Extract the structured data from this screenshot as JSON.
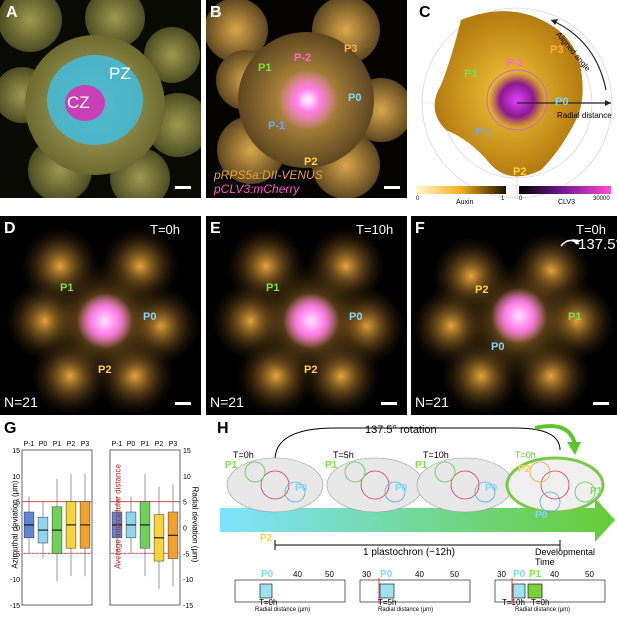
{
  "panelA": {
    "letter": "A",
    "cz": "CZ",
    "pz": "PZ"
  },
  "panelB": {
    "letter": "B",
    "p_minus2": "P-2",
    "p3": "P3",
    "p1": "P1",
    "p0": "P0",
    "p_minus1": "P-1",
    "p2": "P2",
    "legend1": "pRPS5a:DII-VENUS",
    "legend2": "pCLV3:mCherry"
  },
  "panelC": {
    "letter": "C",
    "aligned_angle": "Aligned angle",
    "radial_distance": "Radial distance",
    "p3": "P3",
    "p_minus2": "P-2",
    "p1": "P1",
    "p0": "P0",
    "p_minus1": "P-1",
    "p2": "P2",
    "auxin_cb_min": "0",
    "auxin_cb_max": "1",
    "auxin_label": "Auxin",
    "clv3_cb_min": "0",
    "clv3_cb_max": "30000",
    "clv3_label": "CLV3"
  },
  "panelD": {
    "letter": "D",
    "time": "T=0h",
    "p1": "P1",
    "p0": "P0",
    "p2": "P2",
    "n": "N=21"
  },
  "panelE": {
    "letter": "E",
    "time": "T=10h",
    "p1": "P1",
    "p0": "P0",
    "p2": "P2",
    "n": "N=21"
  },
  "panelF": {
    "letter": "F",
    "time": "T=0h",
    "rotation": "137.5°",
    "p2": "P2",
    "p1": "P1",
    "p0": "P0",
    "n": "N=21"
  },
  "panelG": {
    "letter": "G",
    "left_ylabel": "Azimuthal deviation (μm)",
    "right_ylabel": "Radial deviation (μm)",
    "middle_label": "Average intercellular distance",
    "categories": [
      "P-1",
      "P0",
      "P1",
      "P2",
      "P3"
    ],
    "ticks": [
      "15",
      "10",
      "5",
      "0",
      "-5",
      "-10",
      "-15"
    ]
  },
  "panelH": {
    "letter": "H",
    "rotation_label": "137.5° rotation",
    "times": [
      "T=0h",
      "T=5h",
      "T=10h",
      "T=0h"
    ],
    "plastochron": "1 plastochron (~12h)",
    "dev_time": "Developmental Time",
    "p1": "P1",
    "p0": "P0",
    "p2": "P2",
    "box_axis_label": "Radial distance (μm)",
    "box1": {
      "ticks": [
        "40",
        "50"
      ],
      "label": "P0",
      "time": "T=0h"
    },
    "box2": {
      "ticks": [
        "30",
        "40",
        "50"
      ],
      "label": "P0",
      "time": "T=5h"
    },
    "box3": {
      "ticks": [
        "30",
        "40",
        "50"
      ],
      "label0": "P0",
      "label1": "P1",
      "time0": "T=10h",
      "time1": "T=0h"
    }
  },
  "chart_data": {
    "type": "box",
    "title": "",
    "ylim": [
      -15,
      15
    ],
    "categories": [
      "P-1",
      "P0",
      "P1",
      "P2",
      "P3"
    ],
    "series": [
      {
        "name": "Azimuthal deviation",
        "median": [
          0.5,
          -0.5,
          -0.5,
          0.5,
          0.5
        ]
      },
      {
        "name": "Radial deviation",
        "median": [
          0.5,
          0.5,
          0.5,
          -2,
          -1.5
        ]
      }
    ]
  }
}
